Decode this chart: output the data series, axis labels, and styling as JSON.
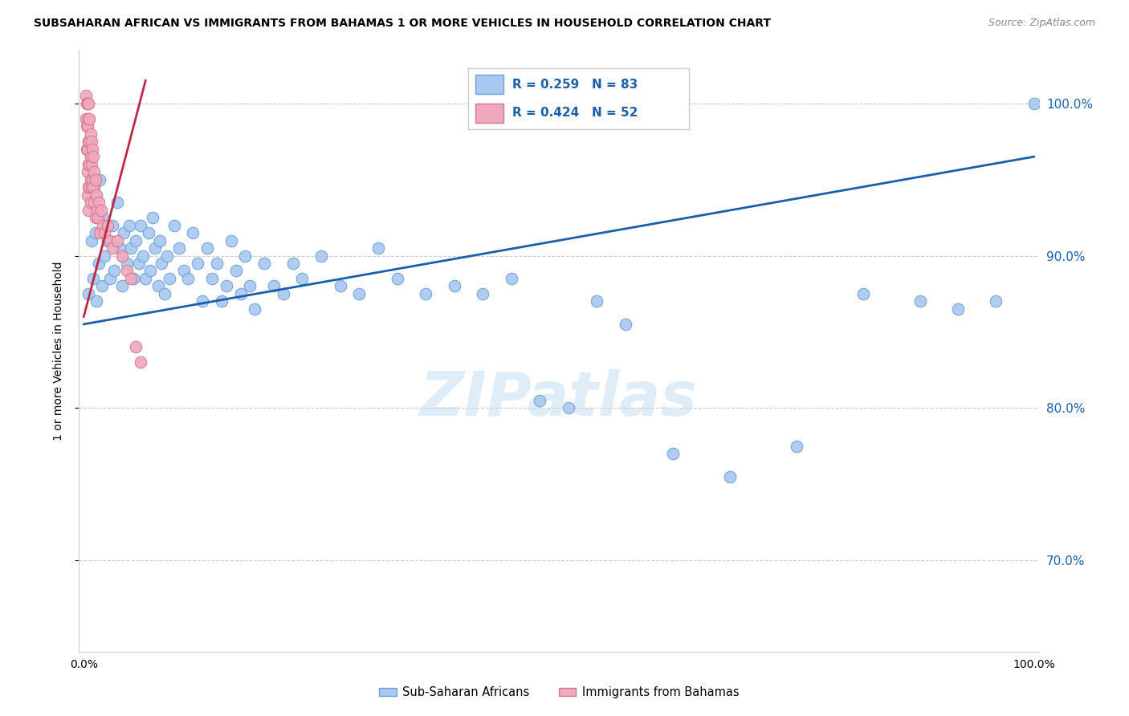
{
  "title": "SUBSAHARAN AFRICAN VS IMMIGRANTS FROM BAHAMAS 1 OR MORE VEHICLES IN HOUSEHOLD CORRELATION CHART",
  "source": "Source: ZipAtlas.com",
  "ylabel": "1 or more Vehicles in Household",
  "y_min": 64.0,
  "y_max": 103.5,
  "x_min": -0.005,
  "x_max": 1.005,
  "blue_R": 0.259,
  "blue_N": 83,
  "pink_R": 0.424,
  "pink_N": 52,
  "blue_color": "#a8c8f0",
  "blue_edge_color": "#6aa0d8",
  "pink_color": "#f0a8bc",
  "pink_edge_color": "#d47890",
  "trend_blue_color": "#1a5fa8",
  "trend_pink_color": "#c02848",
  "legend_color": "#1a5fa8",
  "watermark": "ZIPatlas",
  "blue_trend_x0": 0.0,
  "blue_trend_y0": 85.5,
  "blue_trend_x1": 1.0,
  "blue_trend_y1": 96.5,
  "pink_trend_x0": 0.0,
  "pink_trend_y0": 86.0,
  "pink_trend_x1": 0.065,
  "pink_trend_y1": 101.5,
  "blue_scatter_x": [
    0.005,
    0.008,
    0.01,
    0.011,
    0.012,
    0.013,
    0.015,
    0.016,
    0.017,
    0.019,
    0.02,
    0.022,
    0.025,
    0.028,
    0.03,
    0.032,
    0.035,
    0.038,
    0.04,
    0.042,
    0.045,
    0.048,
    0.05,
    0.052,
    0.055,
    0.058,
    0.06,
    0.062,
    0.065,
    0.068,
    0.07,
    0.072,
    0.075,
    0.078,
    0.08,
    0.082,
    0.085,
    0.088,
    0.09,
    0.095,
    0.1,
    0.105,
    0.11,
    0.115,
    0.12,
    0.125,
    0.13,
    0.135,
    0.14,
    0.145,
    0.15,
    0.155,
    0.16,
    0.165,
    0.17,
    0.175,
    0.18,
    0.19,
    0.2,
    0.21,
    0.22,
    0.23,
    0.25,
    0.27,
    0.29,
    0.31,
    0.33,
    0.36,
    0.39,
    0.42,
    0.45,
    0.48,
    0.51,
    0.54,
    0.57,
    0.62,
    0.68,
    0.75,
    0.82,
    0.88,
    0.92,
    0.96,
    1.0
  ],
  "blue_scatter_y": [
    87.5,
    91.0,
    88.5,
    94.5,
    91.5,
    87.0,
    93.0,
    89.5,
    95.0,
    88.0,
    92.5,
    90.0,
    91.0,
    88.5,
    92.0,
    89.0,
    93.5,
    90.5,
    88.0,
    91.5,
    89.5,
    92.0,
    90.5,
    88.5,
    91.0,
    89.5,
    92.0,
    90.0,
    88.5,
    91.5,
    89.0,
    92.5,
    90.5,
    88.0,
    91.0,
    89.5,
    87.5,
    90.0,
    88.5,
    92.0,
    90.5,
    89.0,
    88.5,
    91.5,
    89.5,
    87.0,
    90.5,
    88.5,
    89.5,
    87.0,
    88.0,
    91.0,
    89.0,
    87.5,
    90.0,
    88.0,
    86.5,
    89.5,
    88.0,
    87.5,
    89.5,
    88.5,
    90.0,
    88.0,
    87.5,
    90.5,
    88.5,
    87.5,
    88.0,
    87.5,
    88.5,
    80.5,
    80.0,
    87.0,
    85.5,
    77.0,
    75.5,
    77.5,
    87.5,
    87.0,
    86.5,
    87.0,
    100.0
  ],
  "pink_scatter_x": [
    0.002,
    0.002,
    0.003,
    0.003,
    0.003,
    0.004,
    0.004,
    0.004,
    0.004,
    0.004,
    0.005,
    0.005,
    0.005,
    0.005,
    0.005,
    0.005,
    0.006,
    0.006,
    0.006,
    0.006,
    0.007,
    0.007,
    0.007,
    0.007,
    0.008,
    0.008,
    0.008,
    0.009,
    0.009,
    0.01,
    0.01,
    0.011,
    0.011,
    0.012,
    0.012,
    0.013,
    0.014,
    0.015,
    0.016,
    0.017,
    0.018,
    0.02,
    0.022,
    0.025,
    0.028,
    0.03,
    0.035,
    0.04,
    0.045,
    0.05,
    0.055,
    0.06
  ],
  "pink_scatter_y": [
    100.5,
    99.0,
    100.0,
    98.5,
    97.0,
    100.0,
    98.5,
    97.0,
    95.5,
    94.0,
    100.0,
    99.0,
    97.5,
    96.0,
    94.5,
    93.0,
    99.0,
    97.5,
    96.0,
    94.5,
    98.0,
    96.5,
    95.0,
    93.5,
    97.5,
    96.0,
    94.5,
    97.0,
    95.0,
    96.5,
    94.5,
    95.5,
    93.5,
    95.0,
    92.5,
    94.0,
    93.0,
    92.5,
    93.5,
    91.5,
    93.0,
    92.0,
    91.5,
    92.0,
    91.0,
    90.5,
    91.0,
    90.0,
    89.0,
    88.5,
    84.0,
    83.0
  ]
}
